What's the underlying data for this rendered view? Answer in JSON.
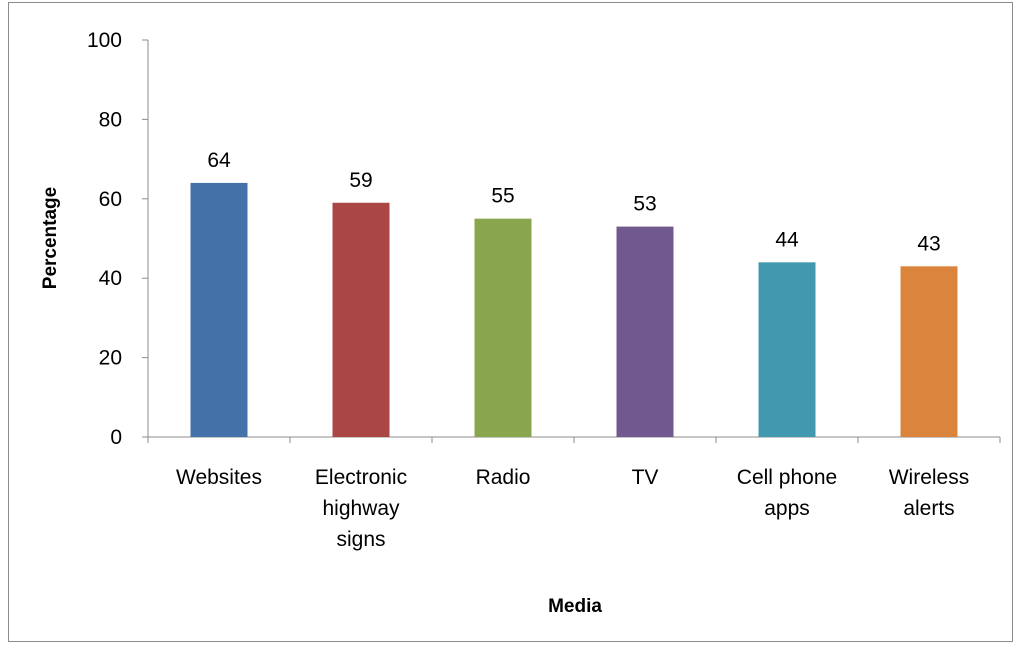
{
  "chart_data": {
    "type": "bar",
    "categories": [
      [
        "Websites"
      ],
      [
        "Electronic",
        "highway",
        "signs"
      ],
      [
        "Radio"
      ],
      [
        "TV"
      ],
      [
        "Cell phone",
        "apps"
      ],
      [
        "Wireless",
        "alerts"
      ]
    ],
    "values": [
      64,
      59,
      55,
      53,
      44,
      43
    ],
    "colors": [
      "#4472a8",
      "#aa4644",
      "#89a54e",
      "#71588f",
      "#4198af",
      "#db843d"
    ],
    "xlabel": "Media",
    "ylabel": "Percentage",
    "ylim": [
      0,
      100
    ],
    "yticks": [
      0,
      20,
      40,
      60,
      80,
      100
    ],
    "grid": false,
    "legend": "none",
    "data_labels": true
  }
}
